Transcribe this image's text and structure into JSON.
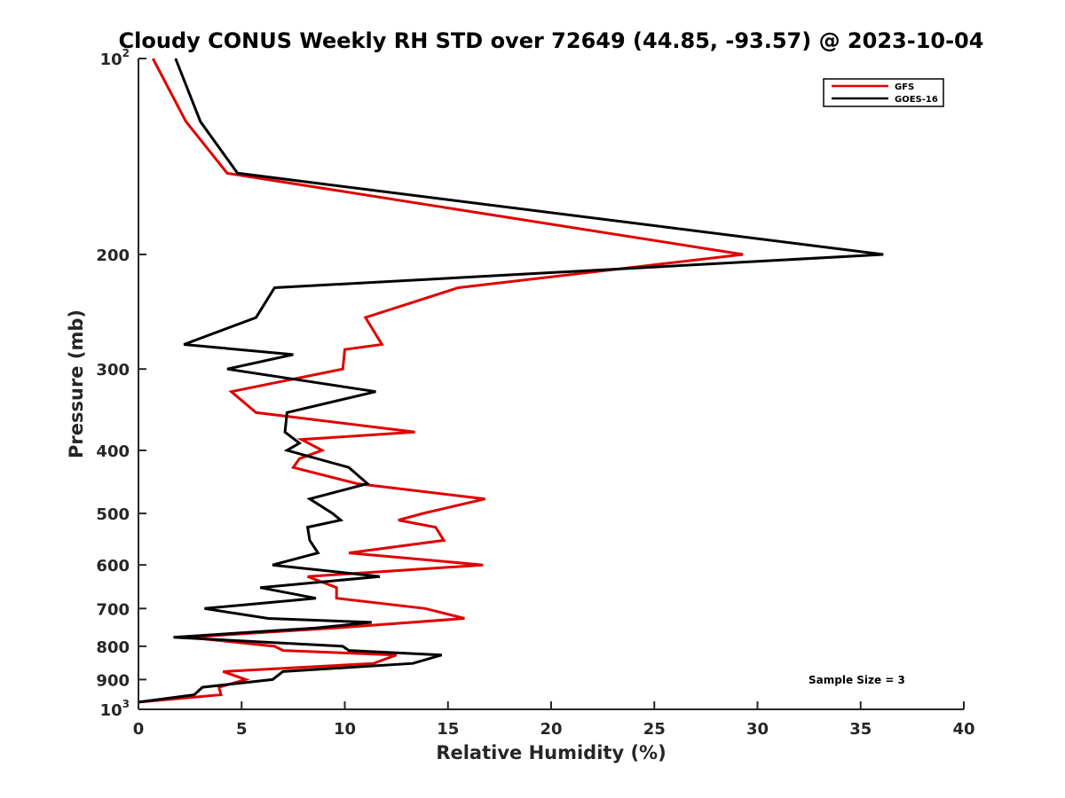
{
  "chart_data": {
    "type": "line",
    "title": "Cloudy CONUS Weekly RH STD over 72649 (44.85, -93.57) @ 2023-10-04",
    "xlabel": "Relative Humidity (%)",
    "ylabel": "Pressure (mb)",
    "xlim": [
      0,
      40
    ],
    "ylim": [
      100,
      1000
    ],
    "y_scale": "log",
    "y_reversed": true,
    "x_ticks": [
      0,
      5,
      10,
      15,
      20,
      25,
      30,
      35,
      40
    ],
    "y_ticks": [
      {
        "value": 100,
        "label": "10",
        "sup": "2"
      },
      {
        "value": 200,
        "label": "200"
      },
      {
        "value": 300,
        "label": "300"
      },
      {
        "value": 400,
        "label": "400"
      },
      {
        "value": 500,
        "label": "500"
      },
      {
        "value": 600,
        "label": "600"
      },
      {
        "value": 700,
        "label": "700"
      },
      {
        "value": 800,
        "label": "800"
      },
      {
        "value": 900,
        "label": "900"
      },
      {
        "value": 1000,
        "label": "10",
        "sup": "3"
      }
    ],
    "grid": false,
    "legend_position": "top-right",
    "annotation": "Sample Size = 3",
    "series": [
      {
        "name": "GFS",
        "color": "#e00000",
        "points": [
          [
            0.7,
            100
          ],
          [
            2.3,
            125
          ],
          [
            4.3,
            150
          ],
          [
            29.3,
            200
          ],
          [
            15.5,
            225
          ],
          [
            11.0,
            250
          ],
          [
            11.8,
            275
          ],
          [
            10.0,
            280
          ],
          [
            9.9,
            300
          ],
          [
            4.5,
            325
          ],
          [
            5.7,
            350
          ],
          [
            13.4,
            375
          ],
          [
            7.9,
            385
          ],
          [
            8.9,
            400
          ],
          [
            7.8,
            412
          ],
          [
            7.5,
            425
          ],
          [
            10.6,
            450
          ],
          [
            16.8,
            475
          ],
          [
            13.8,
            500
          ],
          [
            12.6,
            512
          ],
          [
            14.4,
            525
          ],
          [
            14.8,
            550
          ],
          [
            10.2,
            575
          ],
          [
            16.7,
            600
          ],
          [
            8.2,
            625
          ],
          [
            9.6,
            650
          ],
          [
            9.6,
            675
          ],
          [
            13.9,
            700
          ],
          [
            15.8,
            725
          ],
          [
            9.5,
            750
          ],
          [
            2.4,
            775
          ],
          [
            6.6,
            800
          ],
          [
            7.0,
            812
          ],
          [
            12.5,
            825
          ],
          [
            11.4,
            850
          ],
          [
            4.1,
            875
          ],
          [
            5.2,
            900
          ],
          [
            3.9,
            925
          ],
          [
            4.0,
            950
          ],
          [
            0.0,
            975
          ]
        ]
      },
      {
        "name": "GOES-16",
        "color": "#000000",
        "points": [
          [
            1.8,
            100
          ],
          [
            3.0,
            125
          ],
          [
            4.8,
            150
          ],
          [
            36.1,
            200
          ],
          [
            6.6,
            225
          ],
          [
            5.7,
            250
          ],
          [
            2.2,
            275
          ],
          [
            7.5,
            285
          ],
          [
            4.3,
            300
          ],
          [
            11.5,
            325
          ],
          [
            7.2,
            350
          ],
          [
            7.1,
            375
          ],
          [
            7.8,
            390
          ],
          [
            7.2,
            400
          ],
          [
            10.2,
            425
          ],
          [
            11.1,
            450
          ],
          [
            8.3,
            475
          ],
          [
            9.4,
            500
          ],
          [
            9.8,
            512
          ],
          [
            8.2,
            525
          ],
          [
            8.3,
            550
          ],
          [
            8.7,
            575
          ],
          [
            6.5,
            600
          ],
          [
            11.7,
            625
          ],
          [
            5.9,
            650
          ],
          [
            8.6,
            675
          ],
          [
            3.2,
            700
          ],
          [
            6.3,
            725
          ],
          [
            11.3,
            735
          ],
          [
            8.6,
            750
          ],
          [
            1.7,
            775
          ],
          [
            9.9,
            800
          ],
          [
            10.2,
            812
          ],
          [
            14.7,
            825
          ],
          [
            13.3,
            850
          ],
          [
            7.0,
            875
          ],
          [
            6.5,
            900
          ],
          [
            3.1,
            925
          ],
          [
            2.7,
            950
          ],
          [
            0.0,
            975
          ]
        ]
      }
    ]
  }
}
